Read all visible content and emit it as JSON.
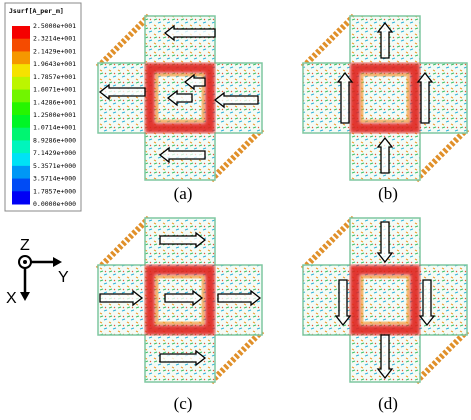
{
  "legend": {
    "title": "Jsurf[A_per_m]",
    "values": [
      "2.5000e+001",
      "2.3214e+001",
      "2.1429e+001",
      "1.9643e+001",
      "1.7857e+001",
      "1.6071e+001",
      "1.4286e+001",
      "1.2500e+001",
      "1.0714e+001",
      "8.9286e+000",
      "7.1429e+000",
      "5.3571e+000",
      "3.5714e+000",
      "1.7857e+000",
      "0.0000e+000"
    ]
  },
  "panels": [
    {
      "label": "(a)"
    },
    {
      "label": "(b)"
    },
    {
      "label": "(c)"
    },
    {
      "label": "(d)"
    }
  ],
  "axes": {
    "z": "Z",
    "y": "Y",
    "x": "X"
  }
}
